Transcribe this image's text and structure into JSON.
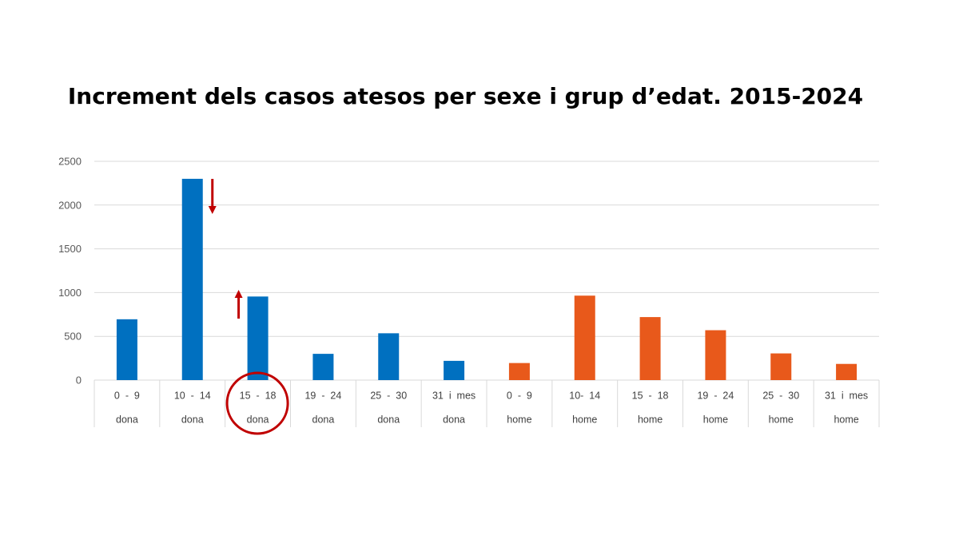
{
  "title": "Increment dels casos atesos per sexe i grup d’edat. 2015-2024",
  "chart_data": {
    "type": "bar",
    "categories": [
      {
        "age": "0  -  9",
        "sex": "dona"
      },
      {
        "age": "10  -  14",
        "sex": "dona"
      },
      {
        "age": "15  -  18",
        "sex": "dona"
      },
      {
        "age": "19  -  24",
        "sex": "dona"
      },
      {
        "age": "25  -  30",
        "sex": "dona"
      },
      {
        "age": "31  i  mes",
        "sex": "dona"
      },
      {
        "age": "0  -  9",
        "sex": "home"
      },
      {
        "age": "10-  14",
        "sex": "home"
      },
      {
        "age": "15  -  18",
        "sex": "home"
      },
      {
        "age": "19  -  24",
        "sex": "home"
      },
      {
        "age": "25  -  30",
        "sex": "home"
      },
      {
        "age": "31  i  mes",
        "sex": "home"
      }
    ],
    "values": [
      695,
      2300,
      955,
      300,
      535,
      220,
      195,
      965,
      720,
      570,
      305,
      185
    ],
    "ylim": [
      0,
      2500
    ],
    "yticks": [
      0,
      500,
      1000,
      1500,
      2000,
      2500
    ],
    "grid": true,
    "colors": {
      "dona": "#0070C0",
      "home": "#E8591B",
      "annotation": "#C00000"
    },
    "annotations": [
      {
        "type": "arrow-down",
        "category_index": 1
      },
      {
        "type": "arrow-up",
        "category_index": 2
      },
      {
        "type": "circle",
        "category_index": 2
      }
    ]
  }
}
